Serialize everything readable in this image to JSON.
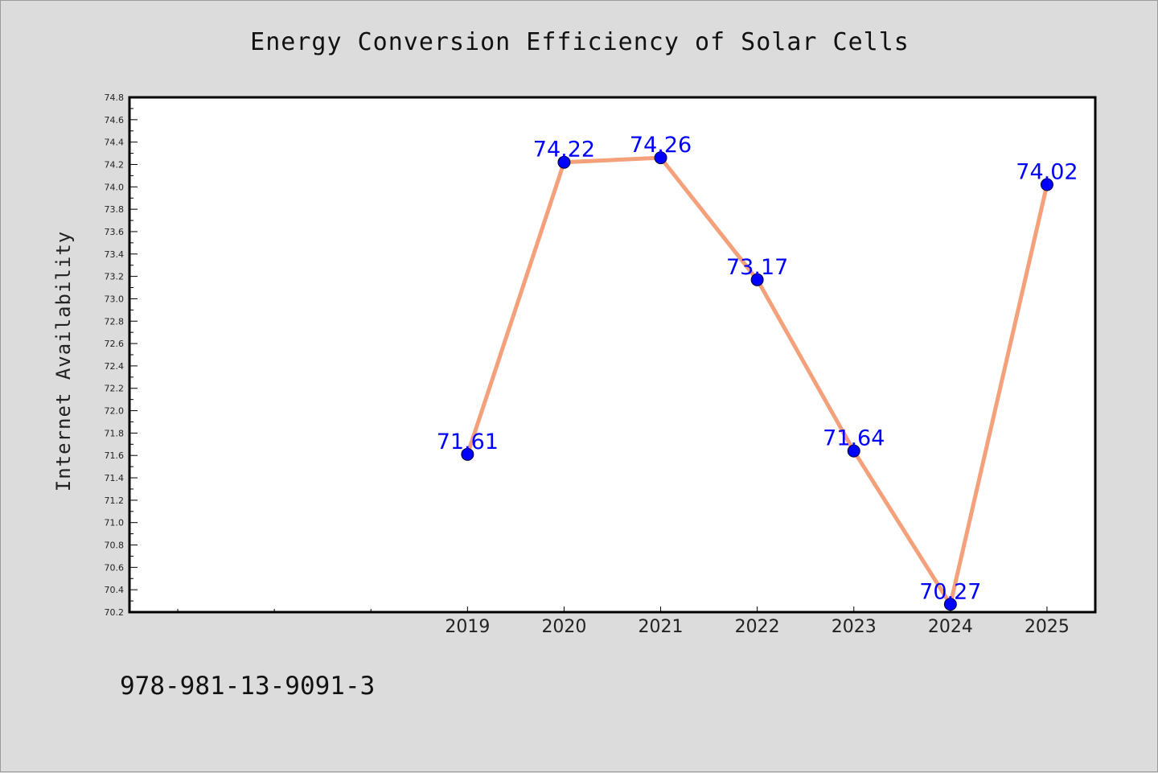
{
  "chart_data": {
    "type": "line",
    "title": "Energy Conversion Efficiency of Solar Cells",
    "xlabel": "",
    "ylabel": "Internet Availability",
    "x": [
      "2019",
      "2020",
      "2021",
      "2022",
      "2023",
      "2024",
      "2025"
    ],
    "values": [
      71.61,
      74.22,
      74.26,
      73.17,
      71.64,
      70.27,
      74.02
    ],
    "data_labels": [
      "71.61",
      "74.22",
      "74.26",
      "73.17",
      "71.64",
      "70.27",
      "74.02"
    ],
    "ylim": [
      70.2,
      74.8
    ],
    "y_ticks": [
      "70.2",
      "70.4",
      "70.6",
      "70.8",
      "71.0",
      "71.2",
      "71.4",
      "71.6",
      "71.8",
      "72.0",
      "72.2",
      "72.4",
      "72.6",
      "72.8",
      "73.0",
      "73.2",
      "73.4",
      "73.6",
      "73.8",
      "74.0",
      "74.2",
      "74.4",
      "74.6",
      "74.8"
    ],
    "x_slots": 10,
    "first_labeled_slot": 3,
    "grid": false,
    "legend": "none",
    "colors": {
      "line": "#f4a07a",
      "marker": "#0000ff",
      "data_label": "#0000ff",
      "plot_background": "#ffffff",
      "figure_background": "#dcdcdc"
    }
  },
  "footer_text": "978-981-13-9091-3"
}
